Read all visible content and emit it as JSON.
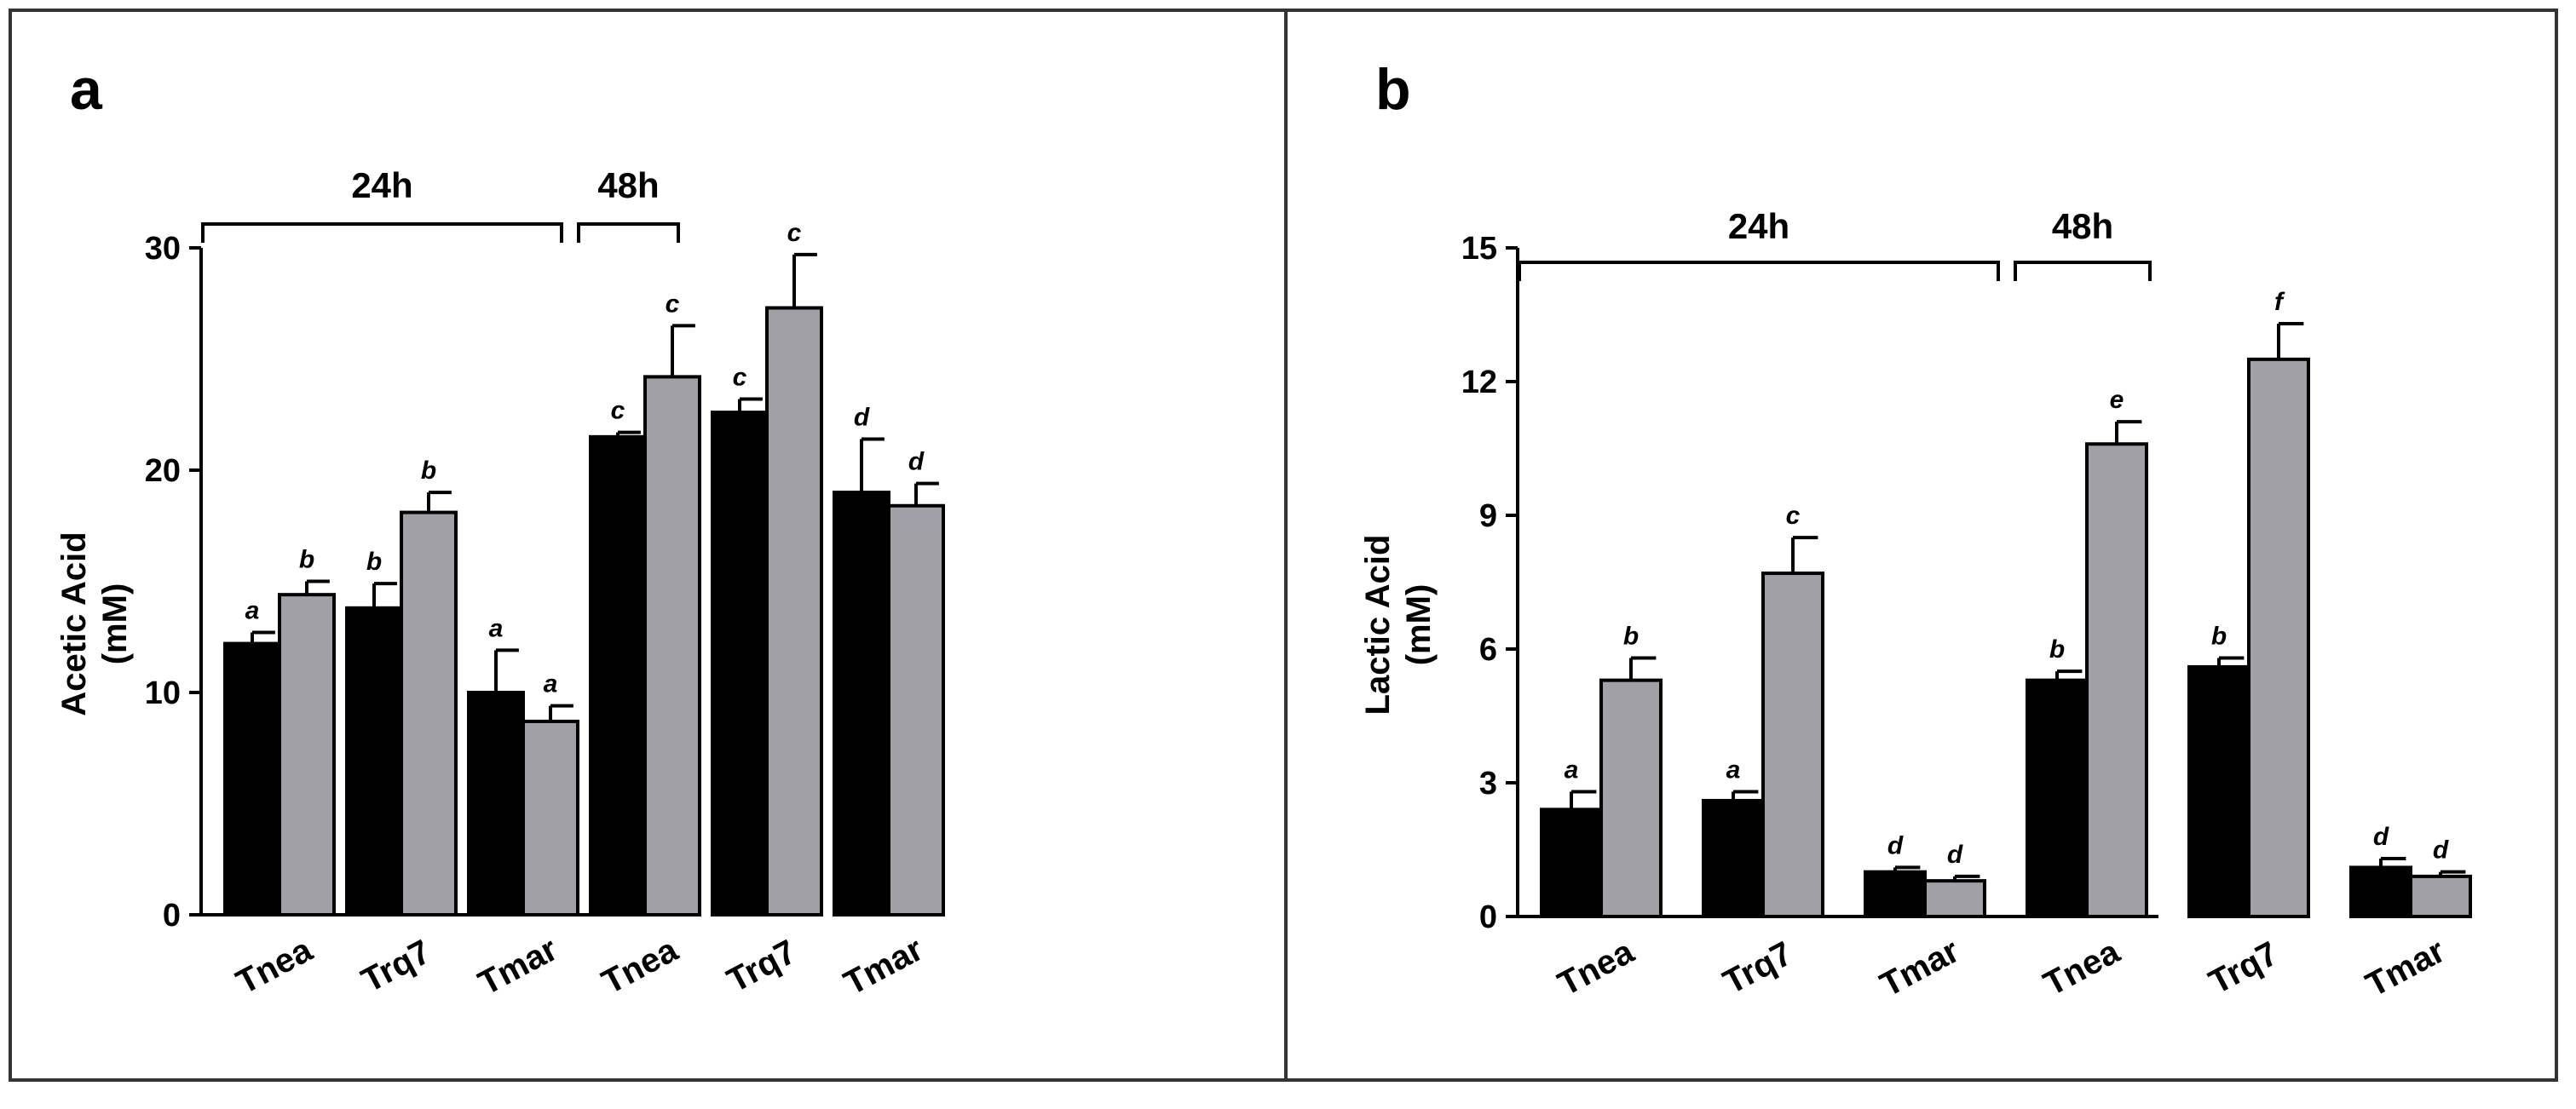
{
  "chart_data": [
    {
      "type": "bar",
      "panel_label": "a",
      "ylabel_line1": "Acetic Acid",
      "ylabel_line2": "(mM)",
      "ylim": [
        0,
        30
      ],
      "yticks": [
        "0",
        "10",
        "20",
        "30"
      ],
      "categories": [
        "Tnea",
        "Trq7",
        "Tmar",
        "Tnea",
        "Trq7",
        "Tmar"
      ],
      "groups": [
        {
          "label": "24h",
          "category_indices": [
            0,
            1,
            2
          ]
        },
        {
          "label": "48h",
          "category_indices": [
            3,
            4,
            5
          ]
        }
      ],
      "series": [
        {
          "name": "black",
          "color": "#000000",
          "values": [
            12.2,
            13.8,
            10.0,
            21.5,
            22.6,
            19.0
          ],
          "errors": [
            0.5,
            1.1,
            1.9,
            0.2,
            0.6,
            2.4
          ],
          "letters": [
            "a",
            "b",
            "a",
            "c",
            "c",
            "d"
          ]
        },
        {
          "name": "gray",
          "color": "#a0a0a6",
          "values": [
            14.4,
            18.1,
            8.7,
            24.2,
            27.3,
            18.4
          ],
          "errors": [
            0.6,
            0.9,
            0.7,
            2.3,
            2.4,
            1.0
          ],
          "letters": [
            "b",
            "b",
            "a",
            "c",
            "c",
            "d"
          ]
        }
      ]
    },
    {
      "type": "bar",
      "panel_label": "b",
      "ylabel_line1": "Lactic Acid",
      "ylabel_line2": "(mM)",
      "ylim": [
        0,
        15
      ],
      "yticks": [
        "0",
        "3",
        "6",
        "9",
        "12",
        "15"
      ],
      "categories": [
        "Tnea",
        "Trq7",
        "Tmar",
        "Tnea",
        "Trq7",
        "Tmar"
      ],
      "groups": [
        {
          "label": "24h",
          "category_indices": [
            0,
            1,
            2
          ]
        },
        {
          "label": "48h",
          "category_indices": [
            3,
            4,
            5
          ]
        }
      ],
      "series": [
        {
          "name": "black",
          "color": "#000000",
          "values": [
            2.4,
            2.6,
            1.0,
            5.3,
            5.6,
            1.1
          ],
          "errors": [
            0.4,
            0.2,
            0.1,
            0.2,
            0.2,
            0.2
          ],
          "letters": [
            "a",
            "a",
            "d",
            "b",
            "b",
            "d"
          ]
        },
        {
          "name": "gray",
          "color": "#a0a0a6",
          "values": [
            5.3,
            7.7,
            0.8,
            10.6,
            12.5,
            0.9
          ],
          "errors": [
            0.5,
            0.8,
            0.1,
            0.5,
            0.8,
            0.1
          ],
          "letters": [
            "b",
            "c",
            "d",
            "e",
            "f",
            "d"
          ]
        }
      ]
    }
  ]
}
